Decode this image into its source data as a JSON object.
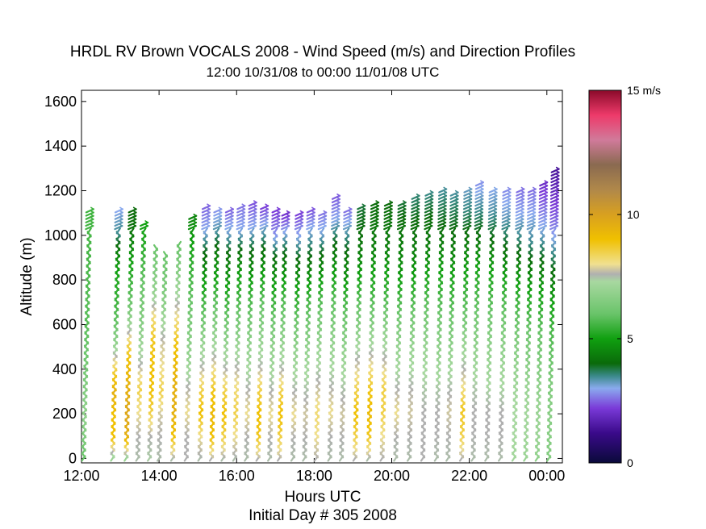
{
  "chart_data": {
    "type": "wind-profile",
    "title": "HRDL RV Brown VOCALS 2008 - Wind Speed (m/s) and Direction Profiles",
    "subtitle": "12:00 10/31/08 to 00:00 11/01/08  UTC",
    "xlabel": "Hours UTC",
    "xlabel2": "Initial Day # 305  2008",
    "ylabel": "Altitude (m)",
    "xlim": [
      12,
      24.4
    ],
    "ylim": [
      -20,
      1650
    ],
    "x_ticks": [
      12,
      14,
      16,
      18,
      20,
      22,
      24
    ],
    "x_tick_labels": [
      "12:00",
      "14:00",
      "16:00",
      "18:00",
      "20:00",
      "22:00",
      "00:00"
    ],
    "y_ticks": [
      0,
      200,
      400,
      600,
      800,
      1000,
      1200,
      1400,
      1600
    ],
    "y_tick_labels": [
      "0",
      "200",
      "400",
      "600",
      "800",
      "1000",
      "1200",
      "1400",
      "1600"
    ],
    "colorbar": {
      "range": [
        0,
        15
      ],
      "ticks": [
        0,
        5,
        10,
        15
      ],
      "tick_labels": [
        "0",
        "5",
        "10",
        "15 m/s"
      ],
      "stops": [
        {
          "v": 0.0,
          "c": "#0a0a3a"
        },
        {
          "v": 1.2,
          "c": "#3a0a8a"
        },
        {
          "v": 2.2,
          "c": "#7a3ad8"
        },
        {
          "v": 3.0,
          "c": "#8aaaee"
        },
        {
          "v": 3.5,
          "c": "#3a8a8a"
        },
        {
          "v": 4.0,
          "c": "#0a6a0a"
        },
        {
          "v": 5.0,
          "c": "#10a010"
        },
        {
          "v": 6.0,
          "c": "#6ac46a"
        },
        {
          "v": 7.3,
          "c": "#a8d8a0"
        },
        {
          "v": 7.6,
          "c": "#b0b0b0"
        },
        {
          "v": 8.0,
          "c": "#f0e090"
        },
        {
          "v": 9.0,
          "c": "#f0c000"
        },
        {
          "v": 10.0,
          "c": "#d8a020"
        },
        {
          "v": 11.0,
          "c": "#b0884a"
        },
        {
          "v": 12.0,
          "c": "#8a6a50"
        },
        {
          "v": 13.0,
          "c": "#d07a9a"
        },
        {
          "v": 14.0,
          "c": "#ee3a6a"
        },
        {
          "v": 15.0,
          "c": "#8a0a2a"
        }
      ]
    },
    "profiles": [
      {
        "time": 12.05,
        "top": 1110,
        "speeds": [
          6,
          6.5,
          6.8,
          6.5,
          6.2,
          6.0,
          5.8,
          5.8,
          5.7,
          5.6,
          5.6,
          5.5
        ]
      },
      {
        "time": 12.8,
        "top": 1110,
        "speeds": [
          7,
          9,
          9,
          9.5,
          8.5,
          7,
          6,
          5.5,
          5.2,
          4.6,
          3.5,
          3.0
        ]
      },
      {
        "time": 13.15,
        "top": 1120,
        "speeds": [
          7,
          9.5,
          9.8,
          9.5,
          9.2,
          8.5,
          7,
          6,
          5.4,
          4.8,
          4.2,
          4.0
        ]
      },
      {
        "time": 13.45,
        "top": 1050,
        "speeds": [
          7.5,
          7.6,
          8,
          8.5,
          7.6,
          7,
          6.5,
          6.2,
          5.8,
          5.3,
          5.0
        ]
      },
      {
        "time": 13.75,
        "top": 950,
        "speeds": [
          7.4,
          7.6,
          8.5,
          9,
          9,
          8.8,
          8.2,
          7,
          6.5,
          6
        ]
      },
      {
        "time": 14.0,
        "top": 920,
        "speeds": [
          7.5,
          7.6,
          7.8,
          8.5,
          8,
          7.8,
          7.2,
          6.6,
          6.2,
          6
        ]
      },
      {
        "time": 14.35,
        "top": 960,
        "speeds": [
          7.5,
          9,
          9.5,
          9.5,
          9.2,
          8.8,
          8,
          7.2,
          6.5,
          6
        ]
      },
      {
        "time": 14.7,
        "top": 1080,
        "speeds": [
          7.6,
          7.6,
          8,
          7.6,
          7,
          6.6,
          6.2,
          5.8,
          5.4,
          5.0,
          4.5
        ]
      },
      {
        "time": 15.05,
        "top": 1130,
        "speeds": [
          7.5,
          8,
          9,
          8.5,
          7.6,
          7,
          6.2,
          5.5,
          4.8,
          4.0,
          3.0,
          2.5
        ]
      },
      {
        "time": 15.35,
        "top": 1120,
        "speeds": [
          7.6,
          9,
          9.2,
          8.8,
          8,
          7.2,
          6.5,
          5.8,
          5.0,
          4.4,
          3.4,
          2.8
        ]
      },
      {
        "time": 15.65,
        "top": 1110,
        "speeds": [
          7.5,
          8.5,
          9,
          8.5,
          7.6,
          7,
          6.2,
          5.5,
          4.8,
          4.2,
          3.2,
          2.5
        ]
      },
      {
        "time": 15.95,
        "top": 1130,
        "speeds": [
          7.5,
          8,
          8.5,
          8.2,
          7.6,
          7,
          6.3,
          5.6,
          5.0,
          4.2,
          3.0,
          2.6
        ]
      },
      {
        "time": 16.25,
        "top": 1140,
        "speeds": [
          7.5,
          7.6,
          8,
          7.6,
          7.2,
          6.8,
          6.2,
          5.6,
          4.8,
          4.0,
          3.0,
          2.4
        ]
      },
      {
        "time": 16.55,
        "top": 1130,
        "speeds": [
          7.6,
          8.8,
          9,
          8.5,
          7.6,
          7,
          6.4,
          5.8,
          5.0,
          4.2,
          3.2,
          2.2
        ]
      },
      {
        "time": 16.85,
        "top": 1110,
        "speeds": [
          7.5,
          7.6,
          8,
          7.6,
          7.2,
          6.8,
          6.2,
          5.5,
          4.8,
          4.0,
          2.8,
          2.2
        ]
      },
      {
        "time": 17.1,
        "top": 1100,
        "speeds": [
          7.6,
          8.5,
          9,
          8.5,
          7.6,
          7,
          6.4,
          5.8,
          5.0,
          4.2,
          3.2,
          2.0
        ]
      },
      {
        "time": 17.45,
        "top": 1100,
        "speeds": [
          7.5,
          7.6,
          8,
          7.6,
          7.2,
          6.8,
          6.2,
          5.5,
          4.8,
          4.0,
          3.0,
          2.2
        ]
      },
      {
        "time": 17.75,
        "top": 1110,
        "speeds": [
          7.5,
          7.6,
          7.8,
          7.5,
          7.2,
          6.8,
          6.2,
          5.6,
          4.8,
          4.0,
          3.2,
          2.4
        ]
      },
      {
        "time": 18.05,
        "top": 1100,
        "speeds": [
          7.6,
          8,
          8.2,
          7.8,
          7.4,
          7,
          6.4,
          5.8,
          5.0,
          4.2,
          3.2,
          2.6
        ]
      },
      {
        "time": 18.4,
        "top": 1180,
        "speeds": [
          7.5,
          7.6,
          8,
          7.6,
          7.2,
          6.8,
          6.2,
          5.6,
          4.8,
          4.0,
          3.0,
          2.4
        ]
      },
      {
        "time": 18.7,
        "top": 1110,
        "speeds": [
          7.5,
          7.6,
          7.8,
          7.5,
          7.2,
          6.8,
          6.2,
          5.6,
          4.8,
          4.2,
          3.4,
          2.6
        ]
      },
      {
        "time": 19.05,
        "top": 1130,
        "speeds": [
          7.6,
          8.5,
          9,
          8.5,
          7.8,
          7.2,
          6.4,
          5.8,
          5.0,
          4.4,
          4.0,
          3.8
        ]
      },
      {
        "time": 19.4,
        "top": 1150,
        "speeds": [
          7.5,
          8.8,
          9.2,
          8.8,
          8,
          7.2,
          6.4,
          5.6,
          5.0,
          4.4,
          4.2,
          4.0
        ]
      },
      {
        "time": 19.75,
        "top": 1150,
        "speeds": [
          7.6,
          8,
          8.5,
          8.5,
          7.8,
          7.2,
          6.4,
          5.6,
          5.0,
          4.4,
          4.2,
          4.0
        ]
      },
      {
        "time": 20.1,
        "top": 1150,
        "speeds": [
          7.5,
          7.6,
          8,
          7.6,
          7.2,
          6.8,
          6.2,
          5.5,
          4.8,
          4.4,
          4.1,
          3.8
        ]
      },
      {
        "time": 20.45,
        "top": 1170,
        "speeds": [
          7.5,
          7.6,
          7.8,
          7.6,
          7.2,
          6.8,
          6.2,
          5.5,
          4.8,
          4.3,
          4.0,
          3.6
        ]
      },
      {
        "time": 20.8,
        "top": 1190,
        "speeds": [
          7.6,
          7.6,
          7.6,
          7.4,
          7.2,
          6.8,
          6.2,
          5.5,
          4.8,
          4.3,
          4.0,
          3.5
        ]
      },
      {
        "time": 21.15,
        "top": 1210,
        "speeds": [
          7.5,
          7.6,
          7.6,
          7.4,
          7.0,
          6.6,
          6.0,
          5.4,
          4.8,
          4.2,
          3.8,
          3.4
        ]
      },
      {
        "time": 21.45,
        "top": 1190,
        "speeds": [
          7.5,
          7.6,
          7.8,
          7.5,
          7.1,
          6.6,
          6.0,
          5.4,
          4.8,
          4.2,
          3.8,
          3.4
        ]
      },
      {
        "time": 21.8,
        "top": 1210,
        "speeds": [
          7.6,
          8.5,
          8.8,
          8.0,
          7.4,
          6.8,
          6.0,
          5.4,
          4.8,
          4.2,
          3.6,
          3.2
        ]
      },
      {
        "time": 22.1,
        "top": 1240,
        "speeds": [
          7.5,
          7.6,
          7.6,
          7.4,
          7.0,
          6.6,
          6.0,
          5.4,
          4.8,
          4.0,
          3.4,
          2.8
        ]
      },
      {
        "time": 22.45,
        "top": 1210,
        "speeds": [
          7.5,
          7.6,
          7.6,
          7.3,
          7.0,
          6.6,
          6.0,
          5.4,
          4.8,
          4.0,
          3.4,
          3.0
        ]
      },
      {
        "time": 22.8,
        "top": 1200,
        "speeds": [
          7.5,
          7.6,
          7.6,
          7.3,
          7.0,
          6.6,
          6.0,
          5.4,
          4.6,
          3.8,
          3.2,
          2.8
        ]
      },
      {
        "time": 23.15,
        "top": 1200,
        "speeds": [
          7.2,
          7.3,
          7.3,
          7.1,
          6.8,
          6.4,
          5.8,
          5.2,
          4.4,
          3.6,
          3.0,
          2.6
        ]
      },
      {
        "time": 23.45,
        "top": 1200,
        "speeds": [
          7.0,
          7.2,
          7.2,
          7.0,
          6.6,
          6.2,
          5.6,
          5.0,
          4.2,
          3.4,
          3.0,
          2.6
        ]
      },
      {
        "time": 23.75,
        "top": 1230,
        "speeds": [
          6.8,
          7.0,
          7.0,
          6.8,
          6.4,
          6.0,
          5.4,
          4.8,
          4.0,
          3.2,
          2.6,
          2.0
        ]
      },
      {
        "time": 24.05,
        "top": 1290,
        "speeds": [
          6.5,
          6.6,
          6.6,
          6.4,
          6.0,
          5.6,
          5.0,
          4.2,
          3.4,
          2.6,
          2.0,
          1.4
        ]
      }
    ]
  }
}
